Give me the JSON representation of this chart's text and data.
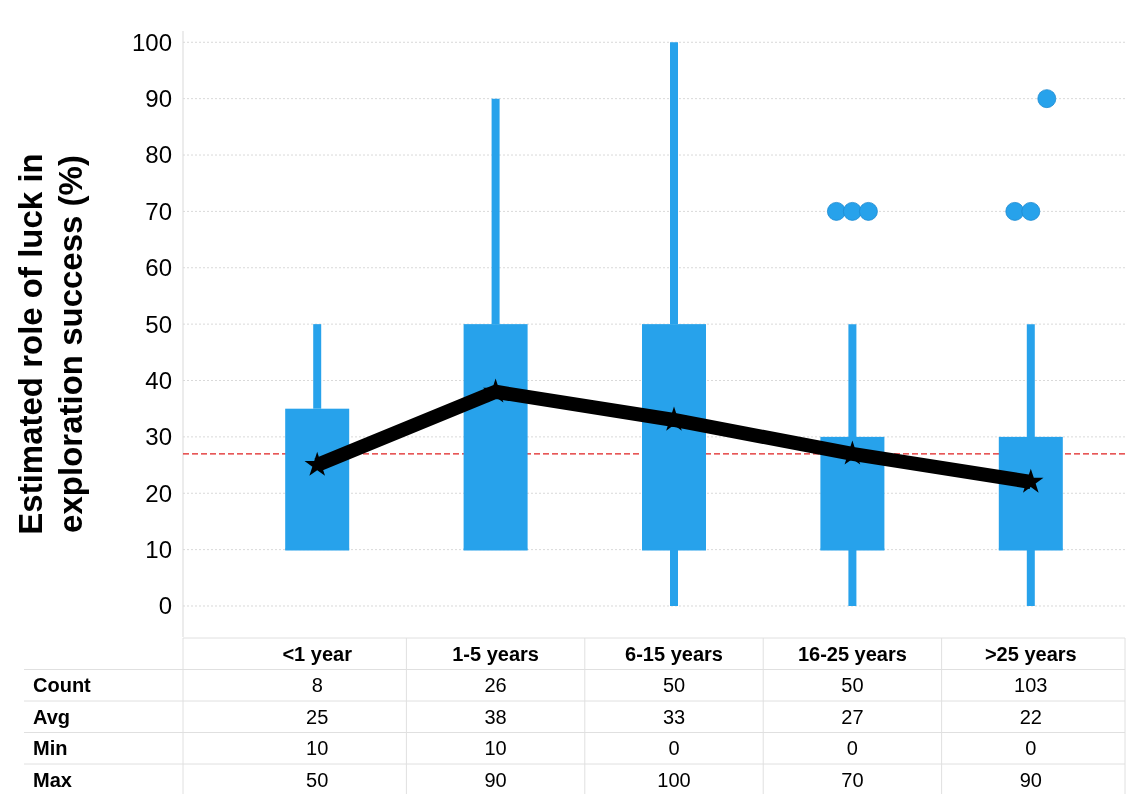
{
  "chart_data": {
    "type": "box",
    "ylabel": "Estimated role of luck in exploration success (%)",
    "categories": [
      "<1 year",
      "1-5 years",
      "6-15 years",
      "16-25 years",
      ">25 years"
    ],
    "series": [
      {
        "color": "#27a2eb",
        "boxes": [
          {
            "low": 10,
            "q1": 10,
            "median": 10,
            "q3": 35,
            "high": 50
          },
          {
            "low": 10,
            "q1": 10,
            "median": 10,
            "q3": 50,
            "high": 90
          },
          {
            "low": 0,
            "q1": 10,
            "median": 10,
            "q3": 50,
            "high": 100
          },
          {
            "low": 0,
            "q1": 10,
            "median": 10,
            "q3": 30,
            "high": 50,
            "outliers": [
              70,
              70,
              70
            ]
          },
          {
            "low": 0,
            "q1": 10,
            "median": 10,
            "q3": 30,
            "high": 50,
            "outliers": [
              70,
              70,
              90
            ]
          }
        ]
      },
      {
        "type": "line",
        "color": "#000000",
        "values": [
          25,
          38,
          33,
          27,
          22
        ]
      }
    ],
    "marker": "star",
    "data_labels": true,
    "ylim": [
      -5.5,
      102
    ],
    "yticks": [
      0,
      10,
      20,
      30,
      40,
      50,
      60,
      70,
      80,
      90,
      100
    ],
    "grid": "y",
    "ref_lines": [
      {
        "axis": "y",
        "value": 27,
        "color": "#e02020",
        "line_style": "dashed"
      }
    ],
    "annotations": [
      "Count",
      "8",
      "26",
      "50",
      "50",
      "103",
      "Avg",
      "Min",
      "10",
      "10",
      "0",
      "0",
      "0",
      "Max",
      "50",
      "90",
      "100",
      "70",
      "90"
    ]
  }
}
